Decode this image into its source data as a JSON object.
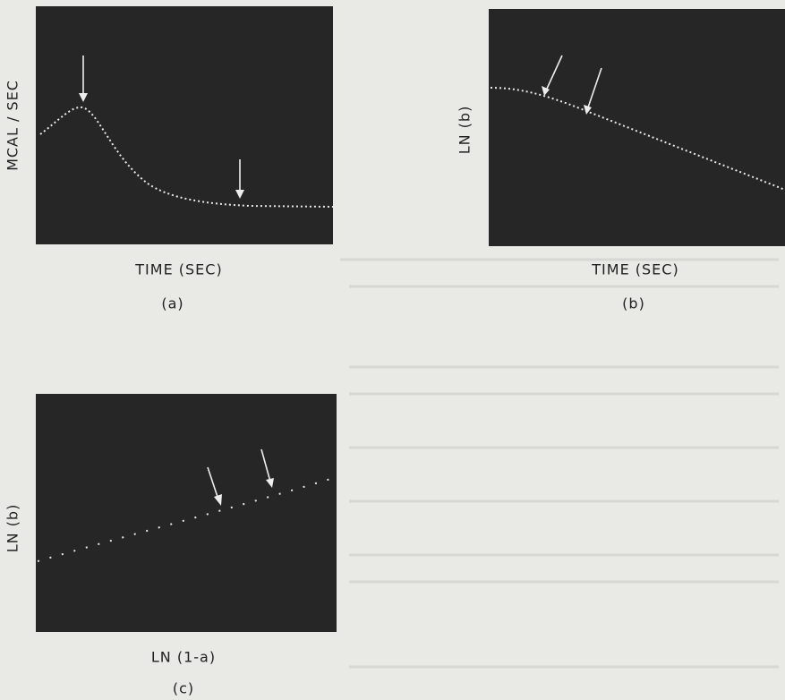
{
  "panels": [
    {
      "y_label": "MCAL / SEC",
      "x_label": "TIME (SEC)",
      "caption": "(a)"
    },
    {
      "y_label": "LN (b)",
      "x_label": "TIME (SEC)",
      "caption": "(b)"
    },
    {
      "y_label": "LN (b)",
      "x_label": "LN (1-a)",
      "caption": "(c)"
    }
  ]
}
